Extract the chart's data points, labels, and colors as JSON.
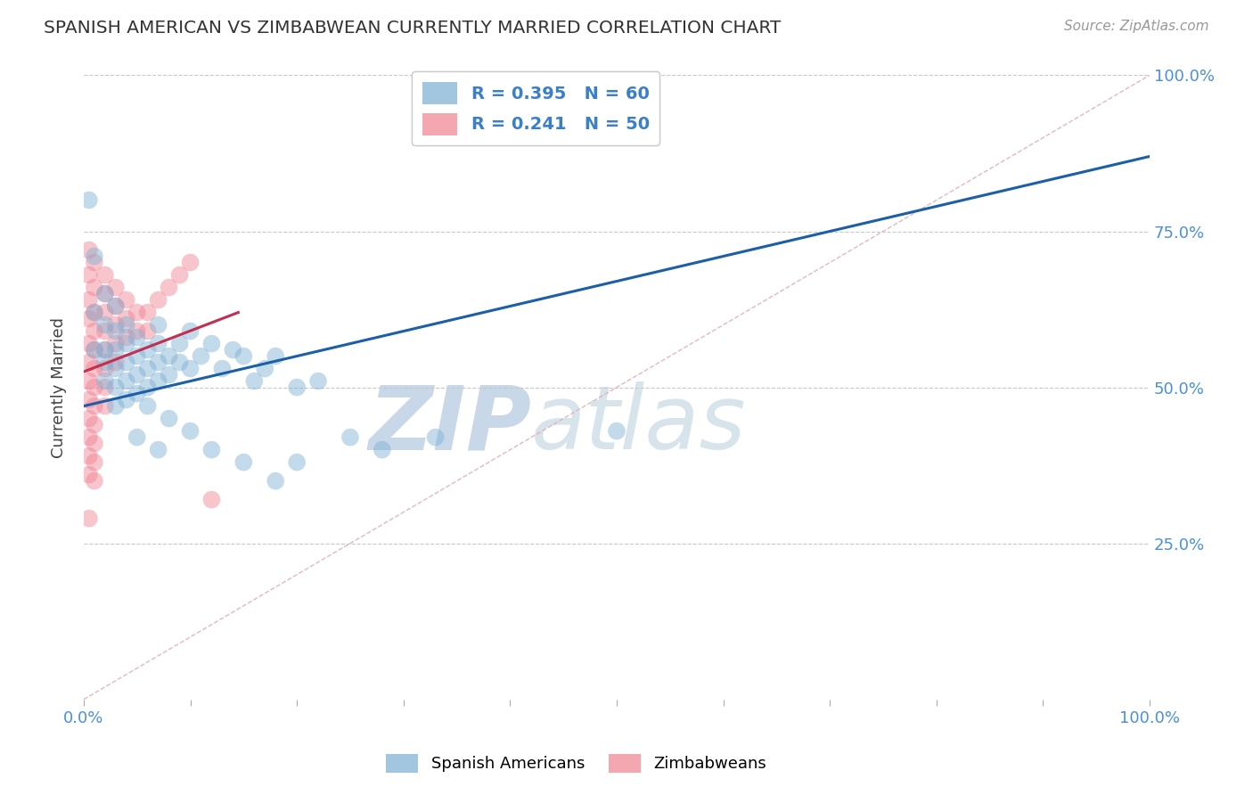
{
  "title": "SPANISH AMERICAN VS ZIMBABWEAN CURRENTLY MARRIED CORRELATION CHART",
  "source_text": "Source: ZipAtlas.com",
  "ylabel": "Currently Married",
  "xlim": [
    0,
    1
  ],
  "ylim": [
    0,
    1
  ],
  "legend_items": [
    {
      "label": "R = 0.395   N = 60",
      "color": "#a8c4e0"
    },
    {
      "label": "R = 0.241   N = 50",
      "color": "#f0a0b0"
    }
  ],
  "legend_bottom": [
    "Spanish Americans",
    "Zimbabweans"
  ],
  "blue_color": "#7bafd4",
  "pink_color": "#f08090",
  "blue_line_color": "#1a5fa8",
  "pink_line_color": "#c03050",
  "diagonal_color": "#e0b0b8",
  "watermark_zip": "ZIP",
  "watermark_atlas": "atlas",
  "watermark_color": "#d4dfe8",
  "blue_line_x0": 0.0,
  "blue_line_y0": 0.47,
  "blue_line_x1": 1.0,
  "blue_line_y1": 0.87,
  "pink_line_x0": 0.0,
  "pink_line_y0": 0.525,
  "pink_line_x1": 0.145,
  "pink_line_y1": 0.62,
  "blue_scatter": [
    [
      0.005,
      0.8
    ],
    [
      0.01,
      0.71
    ],
    [
      0.01,
      0.62
    ],
    [
      0.01,
      0.56
    ],
    [
      0.02,
      0.65
    ],
    [
      0.02,
      0.6
    ],
    [
      0.02,
      0.56
    ],
    [
      0.02,
      0.54
    ],
    [
      0.02,
      0.51
    ],
    [
      0.03,
      0.63
    ],
    [
      0.03,
      0.59
    ],
    [
      0.03,
      0.56
    ],
    [
      0.03,
      0.53
    ],
    [
      0.03,
      0.5
    ],
    [
      0.03,
      0.47
    ],
    [
      0.04,
      0.6
    ],
    [
      0.04,
      0.57
    ],
    [
      0.04,
      0.54
    ],
    [
      0.04,
      0.51
    ],
    [
      0.04,
      0.48
    ],
    [
      0.05,
      0.58
    ],
    [
      0.05,
      0.55
    ],
    [
      0.05,
      0.52
    ],
    [
      0.05,
      0.49
    ],
    [
      0.06,
      0.56
    ],
    [
      0.06,
      0.53
    ],
    [
      0.06,
      0.5
    ],
    [
      0.06,
      0.47
    ],
    [
      0.07,
      0.6
    ],
    [
      0.07,
      0.57
    ],
    [
      0.07,
      0.54
    ],
    [
      0.07,
      0.51
    ],
    [
      0.08,
      0.55
    ],
    [
      0.08,
      0.52
    ],
    [
      0.09,
      0.57
    ],
    [
      0.09,
      0.54
    ],
    [
      0.1,
      0.59
    ],
    [
      0.1,
      0.53
    ],
    [
      0.11,
      0.55
    ],
    [
      0.12,
      0.57
    ],
    [
      0.13,
      0.53
    ],
    [
      0.14,
      0.56
    ],
    [
      0.15,
      0.55
    ],
    [
      0.16,
      0.51
    ],
    [
      0.17,
      0.53
    ],
    [
      0.18,
      0.55
    ],
    [
      0.2,
      0.5
    ],
    [
      0.22,
      0.51
    ],
    [
      0.05,
      0.42
    ],
    [
      0.07,
      0.4
    ],
    [
      0.08,
      0.45
    ],
    [
      0.1,
      0.43
    ],
    [
      0.12,
      0.4
    ],
    [
      0.15,
      0.38
    ],
    [
      0.18,
      0.35
    ],
    [
      0.2,
      0.38
    ],
    [
      0.25,
      0.42
    ],
    [
      0.28,
      0.4
    ],
    [
      0.33,
      0.42
    ],
    [
      0.5,
      0.43
    ]
  ],
  "pink_scatter": [
    [
      0.005,
      0.72
    ],
    [
      0.005,
      0.68
    ],
    [
      0.005,
      0.64
    ],
    [
      0.005,
      0.61
    ],
    [
      0.005,
      0.57
    ],
    [
      0.005,
      0.54
    ],
    [
      0.005,
      0.51
    ],
    [
      0.005,
      0.48
    ],
    [
      0.005,
      0.45
    ],
    [
      0.005,
      0.42
    ],
    [
      0.005,
      0.39
    ],
    [
      0.005,
      0.36
    ],
    [
      0.01,
      0.7
    ],
    [
      0.01,
      0.66
    ],
    [
      0.01,
      0.62
    ],
    [
      0.01,
      0.59
    ],
    [
      0.01,
      0.56
    ],
    [
      0.01,
      0.53
    ],
    [
      0.01,
      0.5
    ],
    [
      0.01,
      0.47
    ],
    [
      0.01,
      0.44
    ],
    [
      0.01,
      0.41
    ],
    [
      0.01,
      0.38
    ],
    [
      0.01,
      0.35
    ],
    [
      0.02,
      0.68
    ],
    [
      0.02,
      0.65
    ],
    [
      0.02,
      0.62
    ],
    [
      0.02,
      0.59
    ],
    [
      0.02,
      0.56
    ],
    [
      0.02,
      0.53
    ],
    [
      0.02,
      0.5
    ],
    [
      0.02,
      0.47
    ],
    [
      0.03,
      0.66
    ],
    [
      0.03,
      0.63
    ],
    [
      0.03,
      0.6
    ],
    [
      0.03,
      0.57
    ],
    [
      0.03,
      0.54
    ],
    [
      0.04,
      0.64
    ],
    [
      0.04,
      0.61
    ],
    [
      0.04,
      0.58
    ],
    [
      0.05,
      0.62
    ],
    [
      0.05,
      0.59
    ],
    [
      0.06,
      0.62
    ],
    [
      0.06,
      0.59
    ],
    [
      0.07,
      0.64
    ],
    [
      0.08,
      0.66
    ],
    [
      0.09,
      0.68
    ],
    [
      0.1,
      0.7
    ],
    [
      0.12,
      0.32
    ],
    [
      0.005,
      0.29
    ]
  ]
}
